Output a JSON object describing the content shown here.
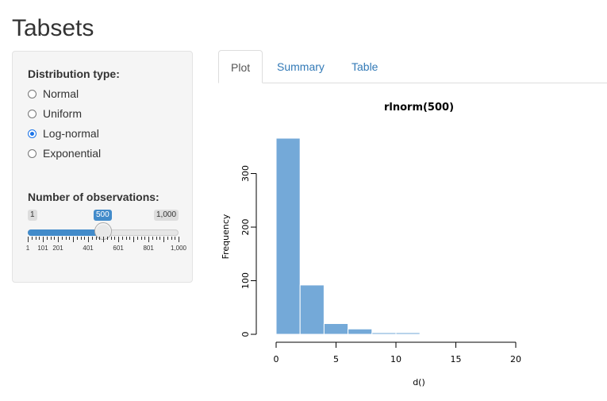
{
  "page": {
    "title": "Tabsets"
  },
  "sidebar": {
    "dist_label": "Distribution type:",
    "options": [
      "Normal",
      "Uniform",
      "Log-normal",
      "Exponential"
    ],
    "selected": "Log-normal",
    "obs_label": "Number of observations:",
    "slider": {
      "min_label": "1",
      "max_label": "1,000",
      "value_label": "500",
      "min": 1,
      "max": 1000,
      "value": 500,
      "tick_labels": [
        "1",
        "101",
        "201",
        "401",
        "601",
        "801",
        "1,000"
      ]
    }
  },
  "tabs": [
    {
      "label": "Plot",
      "active": true
    },
    {
      "label": "Summary",
      "active": false
    },
    {
      "label": "Table",
      "active": false
    }
  ],
  "chart_data": {
    "type": "bar",
    "title": "rlnorm(500)",
    "xlabel": "d()",
    "ylabel": "Frequency",
    "bin_edges": [
      0,
      2,
      4,
      6,
      8,
      10,
      12
    ],
    "values": [
      366,
      92,
      20,
      10,
      3,
      3
    ],
    "xlim": [
      0,
      20
    ],
    "xticks": [
      0,
      5,
      10,
      15,
      20
    ],
    "ylim": [
      0,
      366
    ],
    "yticks": [
      0,
      100,
      200,
      300
    ],
    "bar_color": "#74a9d8"
  }
}
